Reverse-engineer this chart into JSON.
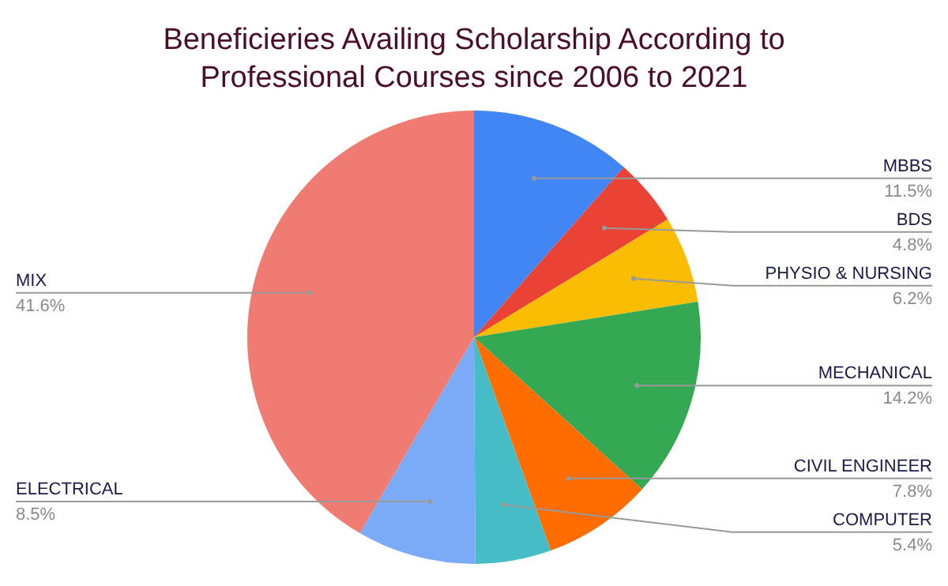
{
  "chart_data": {
    "type": "pie",
    "title": "Beneficieries Availing Scholarship According to Professional Courses since 2006 to 2021",
    "categories": [
      "MBBS",
      "BDS",
      "PHYSIO & NURSING",
      "MECHANICAL",
      "CIVIL ENGINEER",
      "COMPUTER",
      "ELECTRICAL",
      "MIX"
    ],
    "values": [
      11.5,
      4.8,
      6.2,
      14.2,
      7.8,
      5.4,
      8.5,
      41.6
    ],
    "colors": [
      "#4285f4",
      "#ea4335",
      "#fbbc04",
      "#34a853",
      "#ff6d01",
      "#46bdc6",
      "#7baaf7",
      "#f07b72"
    ],
    "value_labels": [
      "11.5%",
      "4.8%",
      "6.2%",
      "14.2%",
      "7.8%",
      "5.4%",
      "8.5%",
      "41.6%"
    ],
    "legend": false
  }
}
